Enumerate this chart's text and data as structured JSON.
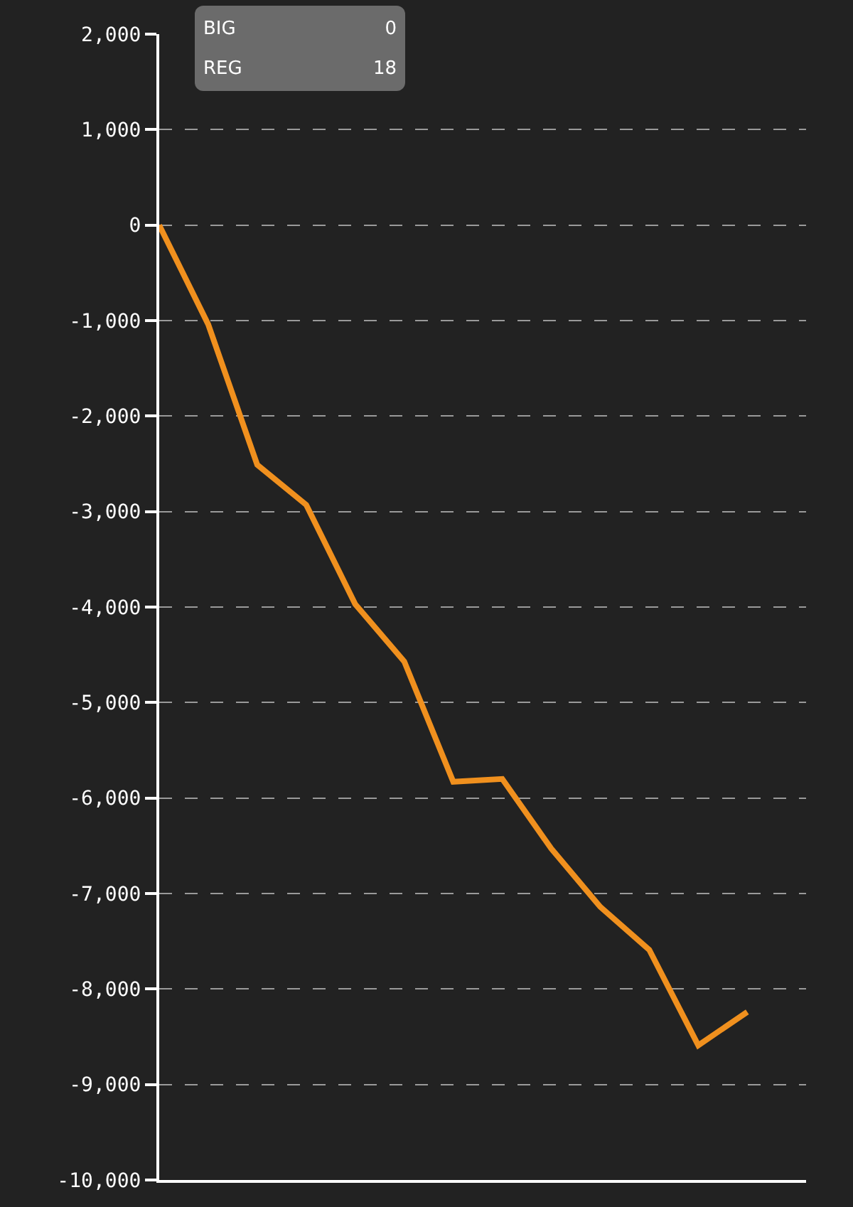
{
  "chart_data": {
    "type": "line",
    "categories": [
      null,
      null,
      null,
      null,
      null,
      null,
      null,
      null,
      null,
      null,
      null,
      null,
      null
    ],
    "series": [
      {
        "color": "#f0901e",
        "values": [
          0,
          -1040,
          -2510,
          -2930,
          -3970,
          -4570,
          -5830,
          -5800,
          -6530,
          -7140,
          -7590,
          -8590,
          -8240
        ]
      }
    ],
    "ylim": [
      -10000,
      2000
    ],
    "yticks": [
      {
        "value": 2000,
        "label": "2,000"
      },
      {
        "value": 1000,
        "label": "1,000"
      },
      0,
      {
        "value": -1000,
        "label": "-1,000"
      },
      {
        "value": -2000,
        "label": "-2,000"
      },
      {
        "value": -3000,
        "label": "-3,000"
      },
      {
        "value": -4000,
        "label": "-4,000"
      },
      {
        "value": -5000,
        "label": "-5,000"
      },
      {
        "value": -6000,
        "label": "-6,000"
      },
      {
        "value": -7000,
        "label": "-7,000"
      },
      {
        "value": -8000,
        "label": "-8,000"
      },
      {
        "value": -9000,
        "label": "-9,000"
      },
      {
        "value": -10000,
        "label": "-10,000"
      }
    ],
    "grid": "y",
    "marker": "none",
    "line_style": "solid",
    "tick_labels": "y",
    "annotations": [
      "BIG",
      "0",
      "REG",
      "18"
    ]
  }
}
